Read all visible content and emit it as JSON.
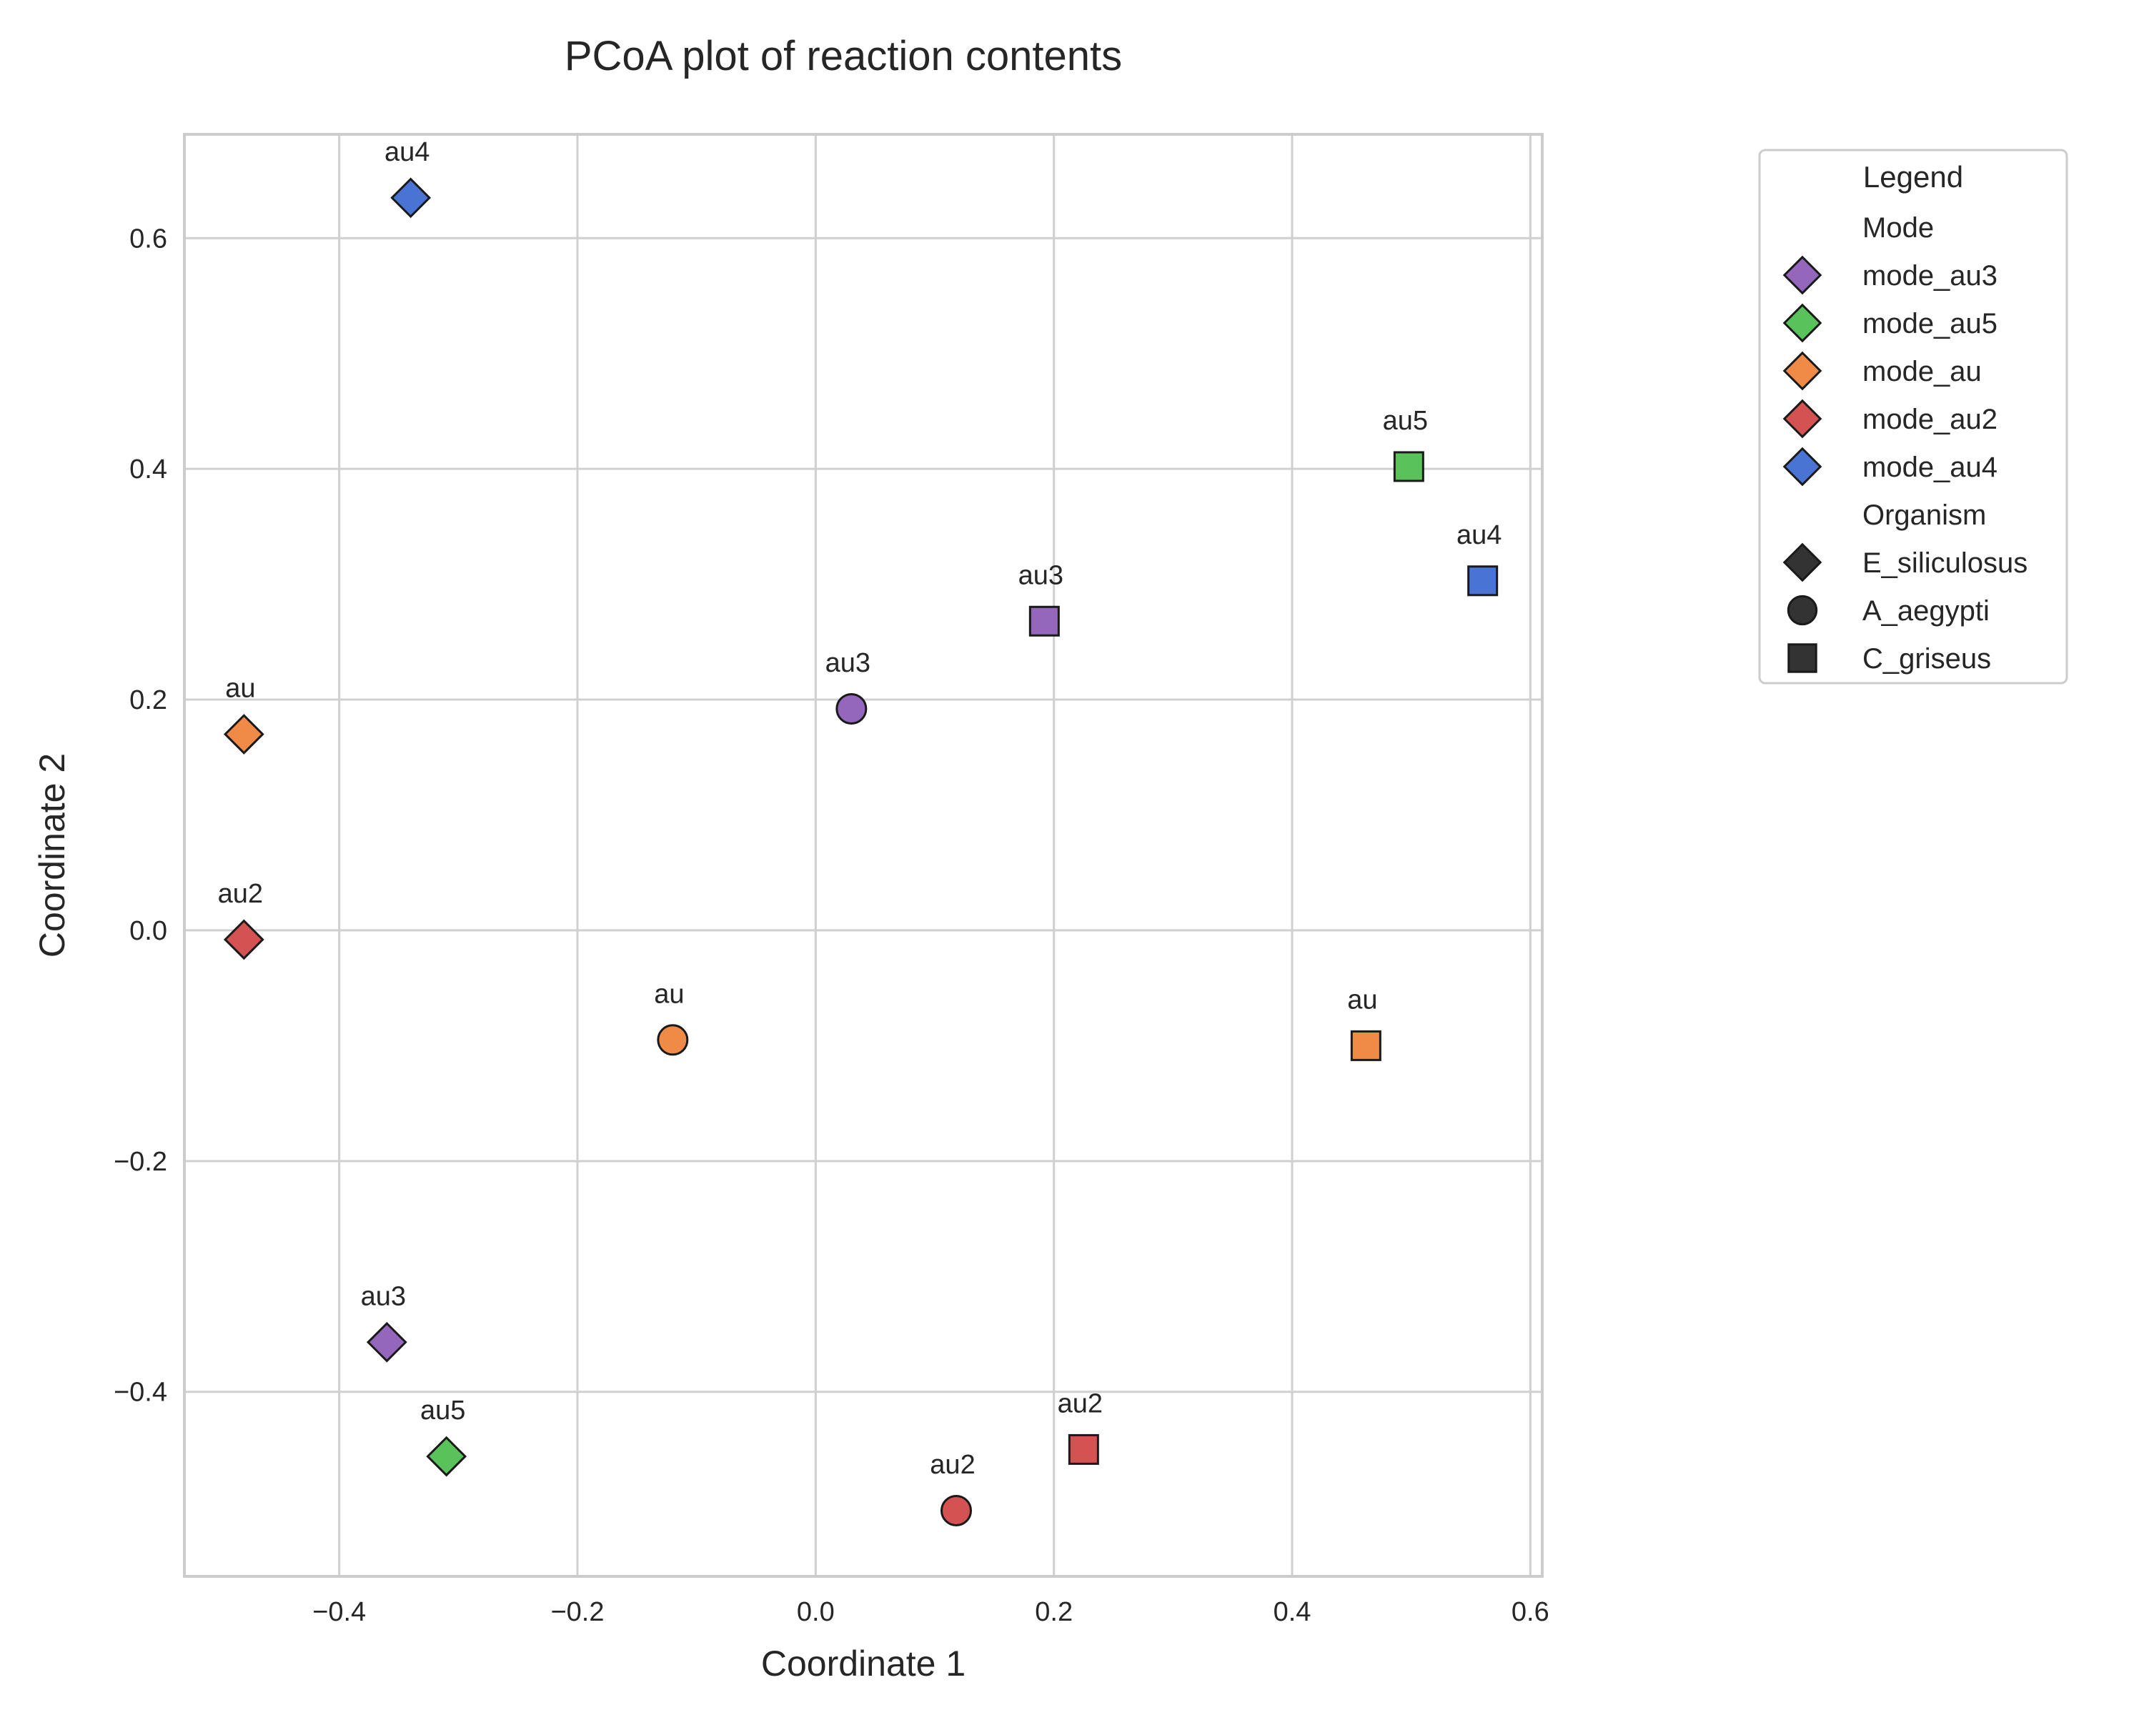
{
  "chart_data": {
    "type": "scatter",
    "title": "PCoA plot of reaction contents",
    "xlabel": "Coordinate 1",
    "ylabel": "Coordinate 2",
    "xlim": [
      -0.53,
      0.61
    ],
    "ylim": [
      -0.56,
      0.69
    ],
    "xticks": [
      -0.4,
      -0.2,
      0.0,
      0.2,
      0.4,
      0.6
    ],
    "yticks": [
      -0.4,
      -0.2,
      0.0,
      0.2,
      0.4,
      0.6
    ],
    "xtick_labels": [
      "−0.4",
      "−0.2",
      "0.0",
      "0.2",
      "0.4",
      "0.6"
    ],
    "ytick_labels": [
      "−0.4",
      "−0.2",
      "0.0",
      "0.2",
      "0.4",
      "0.6"
    ],
    "grid": true,
    "legend_position": "outside-right-top",
    "legend": {
      "title": "Legend",
      "mode_header": "Mode",
      "organism_header": "Organism",
      "modes": [
        {
          "name": "mode_au3",
          "color": "#9467bd"
        },
        {
          "name": "mode_au5",
          "color": "#5ac25a"
        },
        {
          "name": "mode_au",
          "color": "#f08a47"
        },
        {
          "name": "mode_au2",
          "color": "#d55252"
        },
        {
          "name": "mode_au4",
          "color": "#4a74d4"
        }
      ],
      "organisms": [
        {
          "name": "E_siliculosus",
          "marker": "diamond"
        },
        {
          "name": "A_aegypti",
          "marker": "circle"
        },
        {
          "name": "C_griseus",
          "marker": "square"
        }
      ]
    },
    "points": [
      {
        "label": "au4",
        "x": -0.34,
        "y": 0.635,
        "mode": "mode_au4",
        "organism": "E_siliculosus"
      },
      {
        "label": "au",
        "x": -0.48,
        "y": 0.17,
        "mode": "mode_au",
        "organism": "E_siliculosus"
      },
      {
        "label": "au2",
        "x": -0.48,
        "y": -0.008,
        "mode": "mode_au2",
        "organism": "E_siliculosus"
      },
      {
        "label": "au3",
        "x": -0.36,
        "y": -0.357,
        "mode": "mode_au3",
        "organism": "E_siliculosus"
      },
      {
        "label": "au5",
        "x": -0.31,
        "y": -0.456,
        "mode": "mode_au5",
        "organism": "E_siliculosus"
      },
      {
        "label": "au",
        "x": -0.12,
        "y": -0.095,
        "mode": "mode_au",
        "organism": "A_aegypti"
      },
      {
        "label": "au3",
        "x": 0.03,
        "y": 0.192,
        "mode": "mode_au3",
        "organism": "A_aegypti"
      },
      {
        "label": "au2",
        "x": 0.118,
        "y": -0.503,
        "mode": "mode_au2",
        "organism": "A_aegypti"
      },
      {
        "label": "au3",
        "x": 0.192,
        "y": 0.268,
        "mode": "mode_au3",
        "organism": "C_griseus"
      },
      {
        "label": "au2",
        "x": 0.225,
        "y": -0.45,
        "mode": "mode_au2",
        "organism": "C_griseus"
      },
      {
        "label": "au",
        "x": 0.462,
        "y": -0.1,
        "mode": "mode_au",
        "organism": "C_griseus"
      },
      {
        "label": "au5",
        "x": 0.498,
        "y": 0.402,
        "mode": "mode_au5",
        "organism": "C_griseus"
      },
      {
        "label": "au4",
        "x": 0.56,
        "y": 0.303,
        "mode": "mode_au4",
        "organism": "C_griseus"
      }
    ]
  }
}
